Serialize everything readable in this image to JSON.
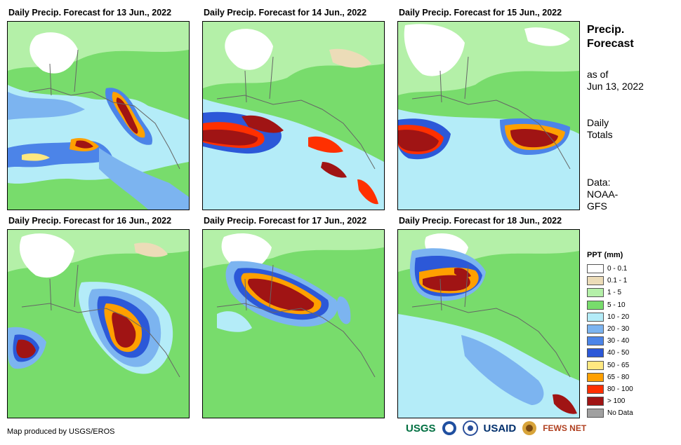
{
  "panels": [
    {
      "title": "Daily Precip. Forecast for 13 Jun., 2022"
    },
    {
      "title": "Daily Precip. Forecast for 14 Jun., 2022"
    },
    {
      "title": "Daily Precip. Forecast for 15 Jun., 2022"
    },
    {
      "title": "Daily Precip. Forecast for 16 Jun., 2022"
    },
    {
      "title": "Daily Precip. Forecast for 17 Jun., 2022"
    },
    {
      "title": "Daily Precip. Forecast for 18 Jun., 2022"
    }
  ],
  "sidebar": {
    "title_line1": "Precip.",
    "title_line2": "Forecast",
    "asof_line1": "as of",
    "asof_line2": "Jun 13, 2022",
    "totals_line1": "Daily",
    "totals_line2": "Totals",
    "data_line1": "Data:",
    "data_line2": "NOAA-",
    "data_line3": "GFS"
  },
  "legend": {
    "title": "PPT (mm)",
    "items": [
      {
        "label": "0 - 0.1",
        "color": "#ffffff"
      },
      {
        "label": "0.1 - 1",
        "color": "#ecdcb8"
      },
      {
        "label": "1 - 5",
        "color": "#b4f0a8"
      },
      {
        "label": "5 - 10",
        "color": "#78dc6c"
      },
      {
        "label": "10 - 20",
        "color": "#b4ecf8"
      },
      {
        "label": "20 - 30",
        "color": "#7cb4f0"
      },
      {
        "label": "30 - 40",
        "color": "#4c84e8"
      },
      {
        "label": "40 - 50",
        "color": "#2c58d8"
      },
      {
        "label": "50 - 65",
        "color": "#ffe880"
      },
      {
        "label": "65 - 80",
        "color": "#ffa000"
      },
      {
        "label": "80 - 100",
        "color": "#ff3000"
      },
      {
        "label": "> 100",
        "color": "#a01414"
      },
      {
        "label": "No Data",
        "color": "#a0a0a0"
      }
    ]
  },
  "footer": {
    "credit": "Map produced by USGS/EROS",
    "logo_usgs": "USGS",
    "logo_usaid": "USAID",
    "logo_fews": "FEWS NET"
  }
}
